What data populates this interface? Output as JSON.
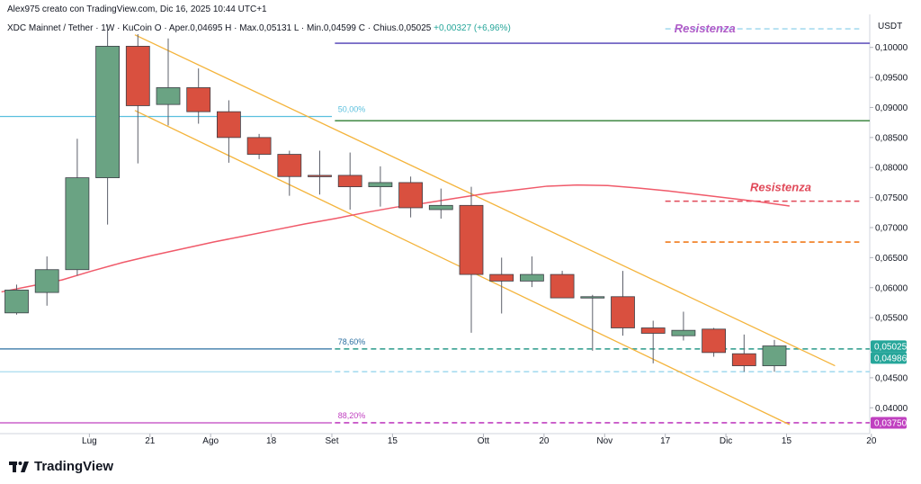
{
  "header": {
    "author_line": "Alex975 creato con TradingView.com, Dic 16, 2025 10:44 UTC+1",
    "symbol": "XDC Mainnet / Tether · 1W · KuCoin",
    "ohlc": "O · Aper.0,04695  H · Max.0,05131  L · Min.0,04599  C · Chius.0,05025",
    "change": "+0,00327 (+6,96%)",
    "unit": "USDT"
  },
  "footer": {
    "logo_text": "TradingView"
  },
  "colors": {
    "bull": "#6aa383",
    "bear": "#d9503f",
    "ma": "#f05a6a",
    "channel": "#f4b43c",
    "fib_light": "#5bc0de",
    "fib_pink": "#c040c0",
    "support_dashed": "#a8dcef",
    "res_top": "#4b3bb3",
    "green_line": "#2e7d32",
    "res_red": "#e04858",
    "res_orange": "#f07b1c"
  },
  "chart_data": {
    "type": "candlestick",
    "y_axis": {
      "ylim": [
        0.0357,
        0.1055
      ],
      "ticks": [
        "0,10000",
        "0,09500",
        "0,09000",
        "0,08500",
        "0,08000",
        "0,07500",
        "0,07000",
        "0,06500",
        "0,06000",
        "0,05500",
        "0,04500",
        "0,04000"
      ],
      "tick_values": [
        0.1,
        0.095,
        0.09,
        0.085,
        0.08,
        0.075,
        0.07,
        0.065,
        0.06,
        0.055,
        0.045,
        0.04
      ]
    },
    "x_axis": {
      "labels": [
        "Lug",
        "21",
        "Ago",
        "18",
        "Set",
        "15",
        "Ott",
        "20",
        "Nov",
        "17",
        "Dic",
        "15",
        "20"
      ],
      "label_index": [
        2.4,
        4.4,
        6.4,
        8.4,
        10.4,
        12.4,
        15.4,
        17.4,
        19.4,
        21.4,
        23.4,
        25.4,
        28.2
      ]
    },
    "candles": [
      {
        "o": 0.0558,
        "h": 0.0605,
        "l": 0.0555,
        "c": 0.0596
      },
      {
        "o": 0.0592,
        "h": 0.0652,
        "l": 0.057,
        "c": 0.063
      },
      {
        "o": 0.063,
        "h": 0.0848,
        "l": 0.062,
        "c": 0.0783
      },
      {
        "o": 0.0783,
        "h": 0.1038,
        "l": 0.0705,
        "c": 0.1002
      },
      {
        "o": 0.1002,
        "h": 0.1022,
        "l": 0.0807,
        "c": 0.0903
      },
      {
        "o": 0.0905,
        "h": 0.1015,
        "l": 0.087,
        "c": 0.0933
      },
      {
        "o": 0.0933,
        "h": 0.0965,
        "l": 0.0873,
        "c": 0.0893
      },
      {
        "o": 0.0893,
        "h": 0.0912,
        "l": 0.0808,
        "c": 0.085
      },
      {
        "o": 0.085,
        "h": 0.0856,
        "l": 0.0814,
        "c": 0.0822
      },
      {
        "o": 0.0822,
        "h": 0.0828,
        "l": 0.0753,
        "c": 0.0785
      },
      {
        "o": 0.0787,
        "h": 0.0828,
        "l": 0.0755,
        "c": 0.0785
      },
      {
        "o": 0.0787,
        "h": 0.0825,
        "l": 0.073,
        "c": 0.0768
      },
      {
        "o": 0.0768,
        "h": 0.0802,
        "l": 0.0735,
        "c": 0.0775
      },
      {
        "o": 0.0775,
        "h": 0.0785,
        "l": 0.0717,
        "c": 0.0733
      },
      {
        "o": 0.073,
        "h": 0.0765,
        "l": 0.0715,
        "c": 0.0737
      },
      {
        "o": 0.0737,
        "h": 0.0768,
        "l": 0.0525,
        "c": 0.0622
      },
      {
        "o": 0.0622,
        "h": 0.065,
        "l": 0.0557,
        "c": 0.0611
      },
      {
        "o": 0.0611,
        "h": 0.0652,
        "l": 0.0601,
        "c": 0.0622
      },
      {
        "o": 0.0622,
        "h": 0.0628,
        "l": 0.0583,
        "c": 0.0583
      },
      {
        "o": 0.0585,
        "h": 0.0588,
        "l": 0.0495,
        "c": 0.0585
      },
      {
        "o": 0.0585,
        "h": 0.0628,
        "l": 0.052,
        "c": 0.0533
      },
      {
        "o": 0.0533,
        "h": 0.0545,
        "l": 0.0474,
        "c": 0.0524
      },
      {
        "o": 0.052,
        "h": 0.056,
        "l": 0.0512,
        "c": 0.0529
      },
      {
        "o": 0.0531,
        "h": 0.0533,
        "l": 0.0485,
        "c": 0.0492
      },
      {
        "o": 0.049,
        "h": 0.0522,
        "l": 0.046,
        "c": 0.047
      },
      {
        "o": 0.047,
        "h": 0.0513,
        "l": 0.046,
        "c": 0.0503
      }
    ],
    "moving_average": [
      0.0593,
      0.0603,
      0.0613,
      0.0628,
      0.0642,
      0.0654,
      0.0665,
      0.0676,
      0.0686,
      0.0696,
      0.0706,
      0.0715,
      0.0725,
      0.0734,
      0.0741,
      0.0749,
      0.0757,
      0.0763,
      0.0769,
      0.0771,
      0.077,
      0.0766,
      0.0761,
      0.0755,
      0.0749,
      0.0743,
      0.0736
    ],
    "channel": {
      "upper": {
        "from": {
          "index": 3.9,
          "price": 0.1021
        },
        "to": {
          "index": 27.0,
          "price": 0.047
        }
      },
      "lower": {
        "from": {
          "index": 3.9,
          "price": 0.0895
        },
        "to": {
          "index": 25.5,
          "price": 0.0372
        }
      }
    },
    "levels": [
      {
        "name": "res-top",
        "price": 0.1007,
        "from_index": 10.5,
        "style": "solid",
        "label": ""
      },
      {
        "name": "res-top-cyan",
        "price": 0.1031,
        "from_index": 21.4,
        "style": "dashed",
        "label": ""
      },
      {
        "name": "fib-50",
        "price": 0.0885,
        "from_index": 0,
        "to_index": 10.4,
        "style": "solid",
        "label": "50,00%"
      },
      {
        "name": "green",
        "price": 0.0878,
        "from_index": 10.5,
        "style": "solid",
        "label": ""
      },
      {
        "name": "res-red",
        "price": 0.0744,
        "from_index": 21.4,
        "style": "dashed",
        "label": ""
      },
      {
        "name": "res-orange",
        "price": 0.0676,
        "from_index": 21.4,
        "style": "dashed",
        "label": ""
      },
      {
        "name": "fib-786",
        "price": 0.0498,
        "from_index": 0,
        "to_index": 10.4,
        "style": "solid",
        "label": "78,60%"
      },
      {
        "name": "fib-786-dashed",
        "price": 0.0498,
        "from_index": 10.5,
        "style": "dashed",
        "label": ""
      },
      {
        "name": "support",
        "price": 0.046,
        "from_index": 0,
        "to_index": 10.4,
        "style": "solid",
        "label": ""
      },
      {
        "name": "support-dashed",
        "price": 0.046,
        "from_index": 10.5,
        "style": "dashed",
        "label": ""
      },
      {
        "name": "fib-882",
        "price": 0.0375,
        "from_index": 0,
        "to_index": 10.4,
        "style": "solid",
        "label": "88,20%"
      },
      {
        "name": "fib-882-dashed",
        "price": 0.0375,
        "from_index": 10.5,
        "style": "dashed",
        "label": ""
      }
    ],
    "annotations": [
      {
        "text": "Resistenza",
        "index": 21.7,
        "price": 0.1031,
        "color": "#b05cc8"
      },
      {
        "text": "Resistenza",
        "index": 24.2,
        "price": 0.0767,
        "color": "#e04858"
      }
    ],
    "price_tags": [
      {
        "text": "0,05025",
        "price": 0.05025,
        "color": "#26a69a"
      },
      {
        "text": "0,04986",
        "price": 0.04986,
        "color": "#26a69a"
      },
      {
        "text": "0,03750",
        "price": 0.0375,
        "color": "#c040c0"
      }
    ]
  }
}
